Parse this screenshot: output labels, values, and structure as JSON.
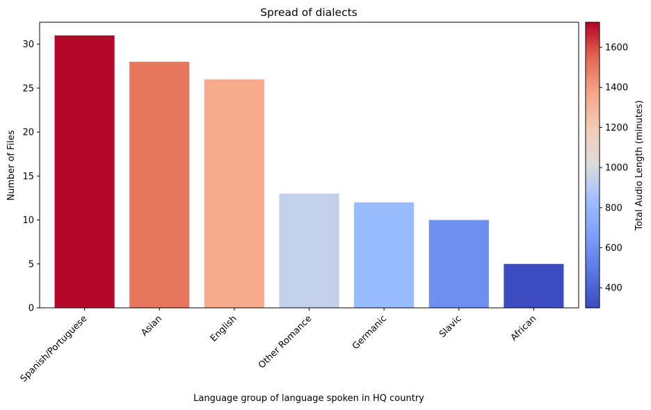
{
  "chart_data": {
    "type": "bar",
    "title": "Spread of dialects",
    "xlabel": "Language group of language spoken in HQ country",
    "ylabel": "Number of Files",
    "categories": [
      "Spanish/Portuguese",
      "Asian",
      "English",
      "Other Romance",
      "Germanic",
      "Slavic",
      "African"
    ],
    "values": [
      31,
      28,
      26,
      13,
      12,
      10,
      5
    ],
    "color_values": [
      1720,
      1510,
      1360,
      940,
      820,
      590,
      300
    ],
    "ylim": [
      0,
      32.5
    ],
    "yticks": [
      0,
      5,
      10,
      15,
      20,
      25,
      30
    ],
    "grid": false,
    "colorbar": {
      "label": "Total Audio Length (minutes)",
      "range": [
        300,
        1725
      ],
      "ticks": [
        400,
        600,
        800,
        1000,
        1200,
        1400,
        1600
      ],
      "colormap": "coolwarm"
    }
  }
}
